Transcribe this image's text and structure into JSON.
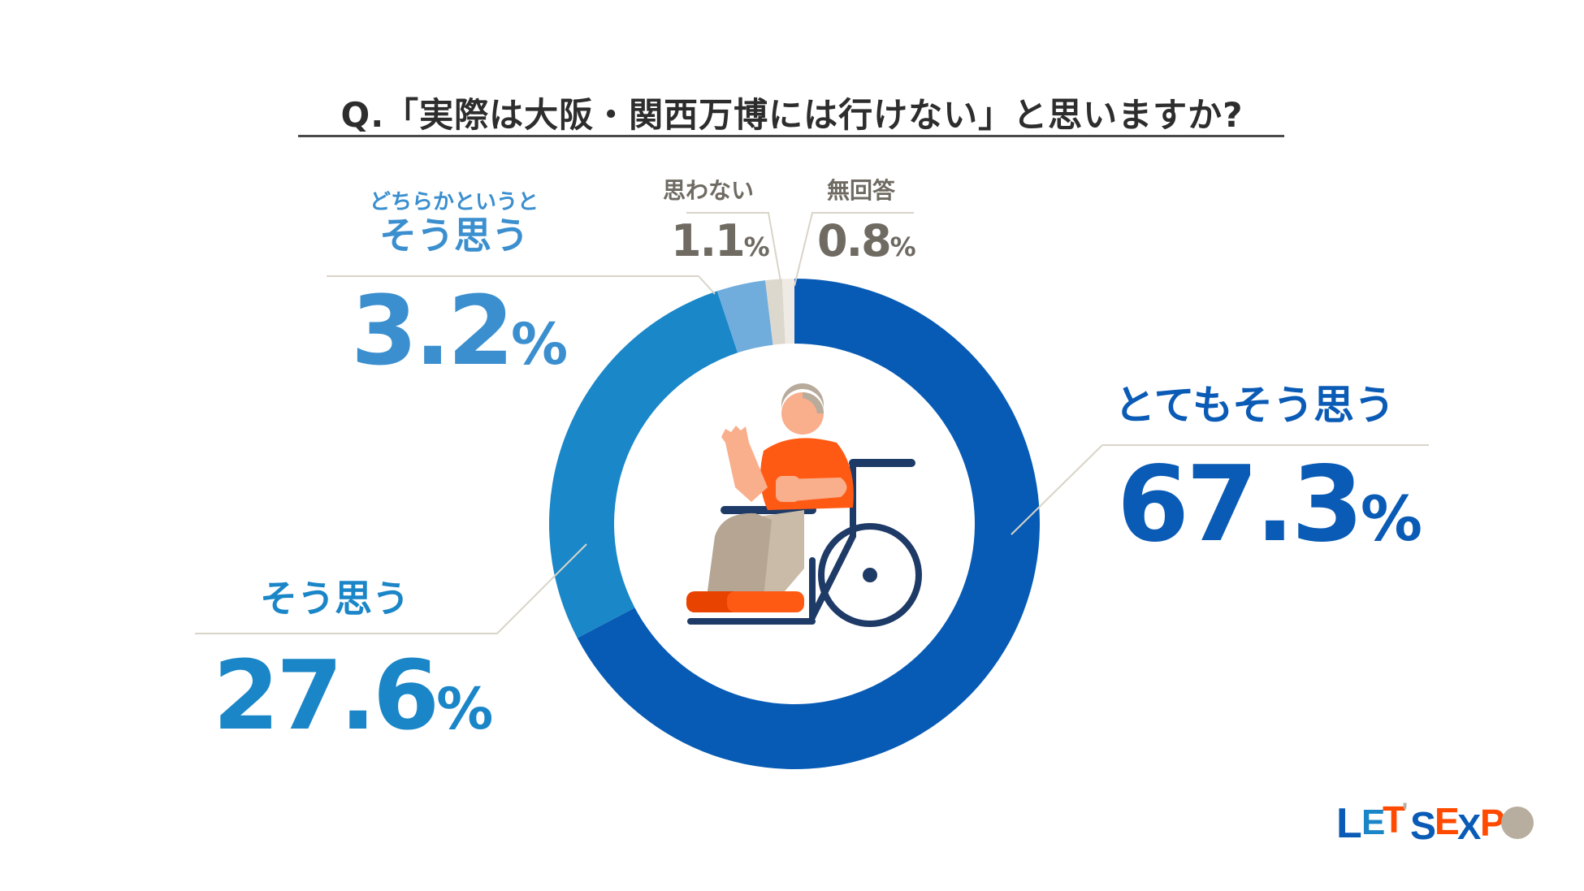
{
  "title": "Q.「実際は大阪・関西万博には行けない」と思いますか?",
  "chart_data": {
    "type": "pie",
    "donut": true,
    "title": "Q.「実際は大阪・関西万博には行けない」と思いますか?",
    "unit": "%",
    "slices": [
      {
        "label": "とてもそう思う",
        "value": 67.3,
        "color": "#075bb5"
      },
      {
        "label": "そう思う",
        "value": 27.6,
        "color": "#1a87c8"
      },
      {
        "label_prefix": "どちらかというと",
        "label": "そう思う",
        "value": 3.2,
        "color": "#70addc"
      },
      {
        "label": "思わない",
        "value": 1.1,
        "color": "#ddd8ce"
      },
      {
        "label": "無回答",
        "value": 0.8,
        "color": "#efebe4"
      }
    ]
  },
  "labels": {
    "very": {
      "text": "とてもそう思う",
      "value": "67.3",
      "unit": "%"
    },
    "agree": {
      "text": "そう思う",
      "value": "27.6",
      "unit": "%"
    },
    "somewhat": {
      "prefix": "どちらかというと",
      "text": "そう思う",
      "value": "3.2",
      "unit": "%"
    },
    "disagree": {
      "text": "思わない",
      "value": "1.1",
      "unit": "%"
    },
    "noanswer": {
      "text": "無回答",
      "value": "0.8",
      "unit": "%"
    }
  },
  "logo": {
    "text": "LET'S EXPO",
    "colors": [
      "#0a5bb6",
      "#ff4a00",
      "#b7ae9f",
      "#1a86c8"
    ]
  }
}
